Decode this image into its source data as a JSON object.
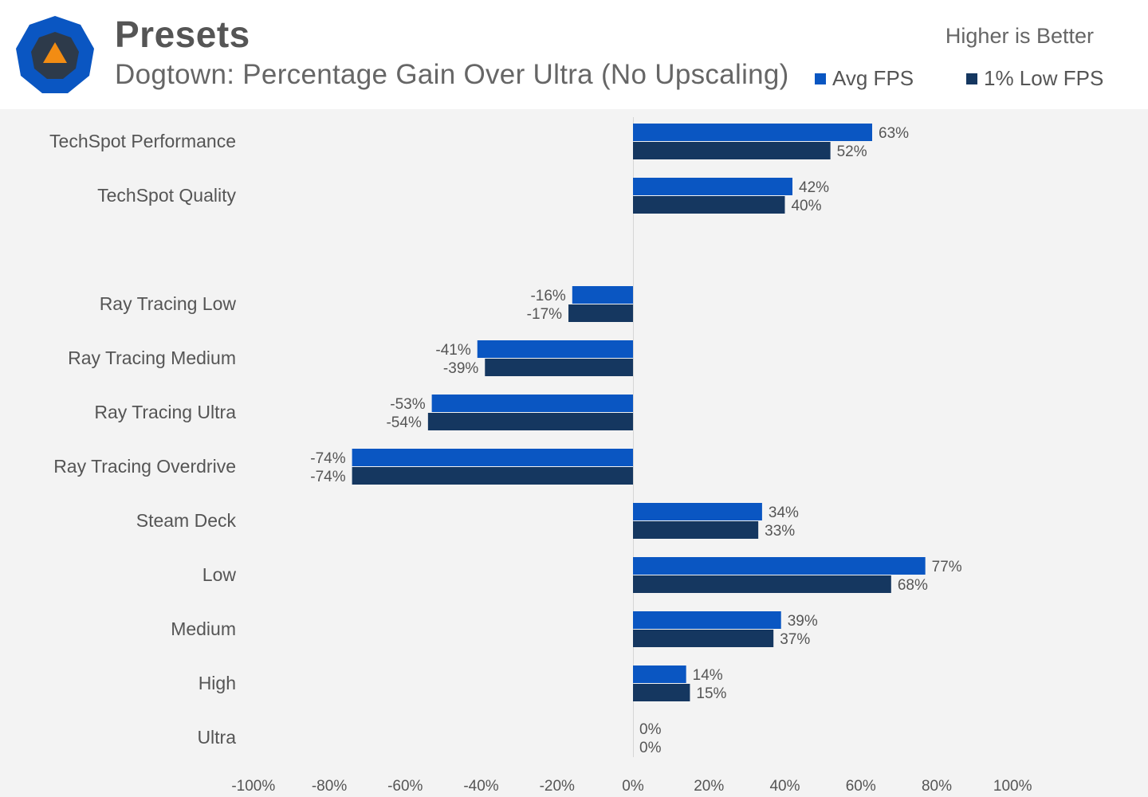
{
  "header": {
    "title": "Presets",
    "subtitle": "Dogtown: Percentage Gain Over Ultra (No Upscaling)",
    "note": "Higher is Better"
  },
  "legend": [
    {
      "name": "Avg FPS",
      "color": "#0a56c2"
    },
    {
      "name": "1% Low FPS",
      "color": "#153760"
    }
  ],
  "logo": {
    "icon": "techspot-logo-icon",
    "outer_color": "#0a56c2",
    "inner_color": "#2d3a4a",
    "accent_color": "#f28c13"
  },
  "chart_data": {
    "type": "bar",
    "orientation": "horizontal",
    "categories": [
      "TechSpot Performance",
      "TechSpot Quality",
      "",
      "Ray Tracing Low",
      "Ray Tracing Medium",
      "Ray Tracing Ultra",
      "Ray Tracing Overdrive",
      "Steam Deck",
      "Low",
      "Medium",
      "High",
      "Ultra"
    ],
    "series": [
      {
        "name": "Avg FPS",
        "color": "#0a56c2",
        "values": [
          63,
          42,
          null,
          -16,
          -41,
          -53,
          -74,
          34,
          77,
          39,
          14,
          0
        ]
      },
      {
        "name": "1% Low FPS",
        "color": "#153760",
        "values": [
          52,
          40,
          null,
          -17,
          -39,
          -54,
          -74,
          33,
          68,
          37,
          15,
          0
        ]
      }
    ],
    "xlim": [
      -100,
      100
    ],
    "xticks": [
      "-100%",
      "-80%",
      "-60%",
      "-40%",
      "-20%",
      "0%",
      "20%",
      "40%",
      "60%",
      "80%",
      "100%"
    ],
    "value_suffix": "%",
    "grid": false
  }
}
